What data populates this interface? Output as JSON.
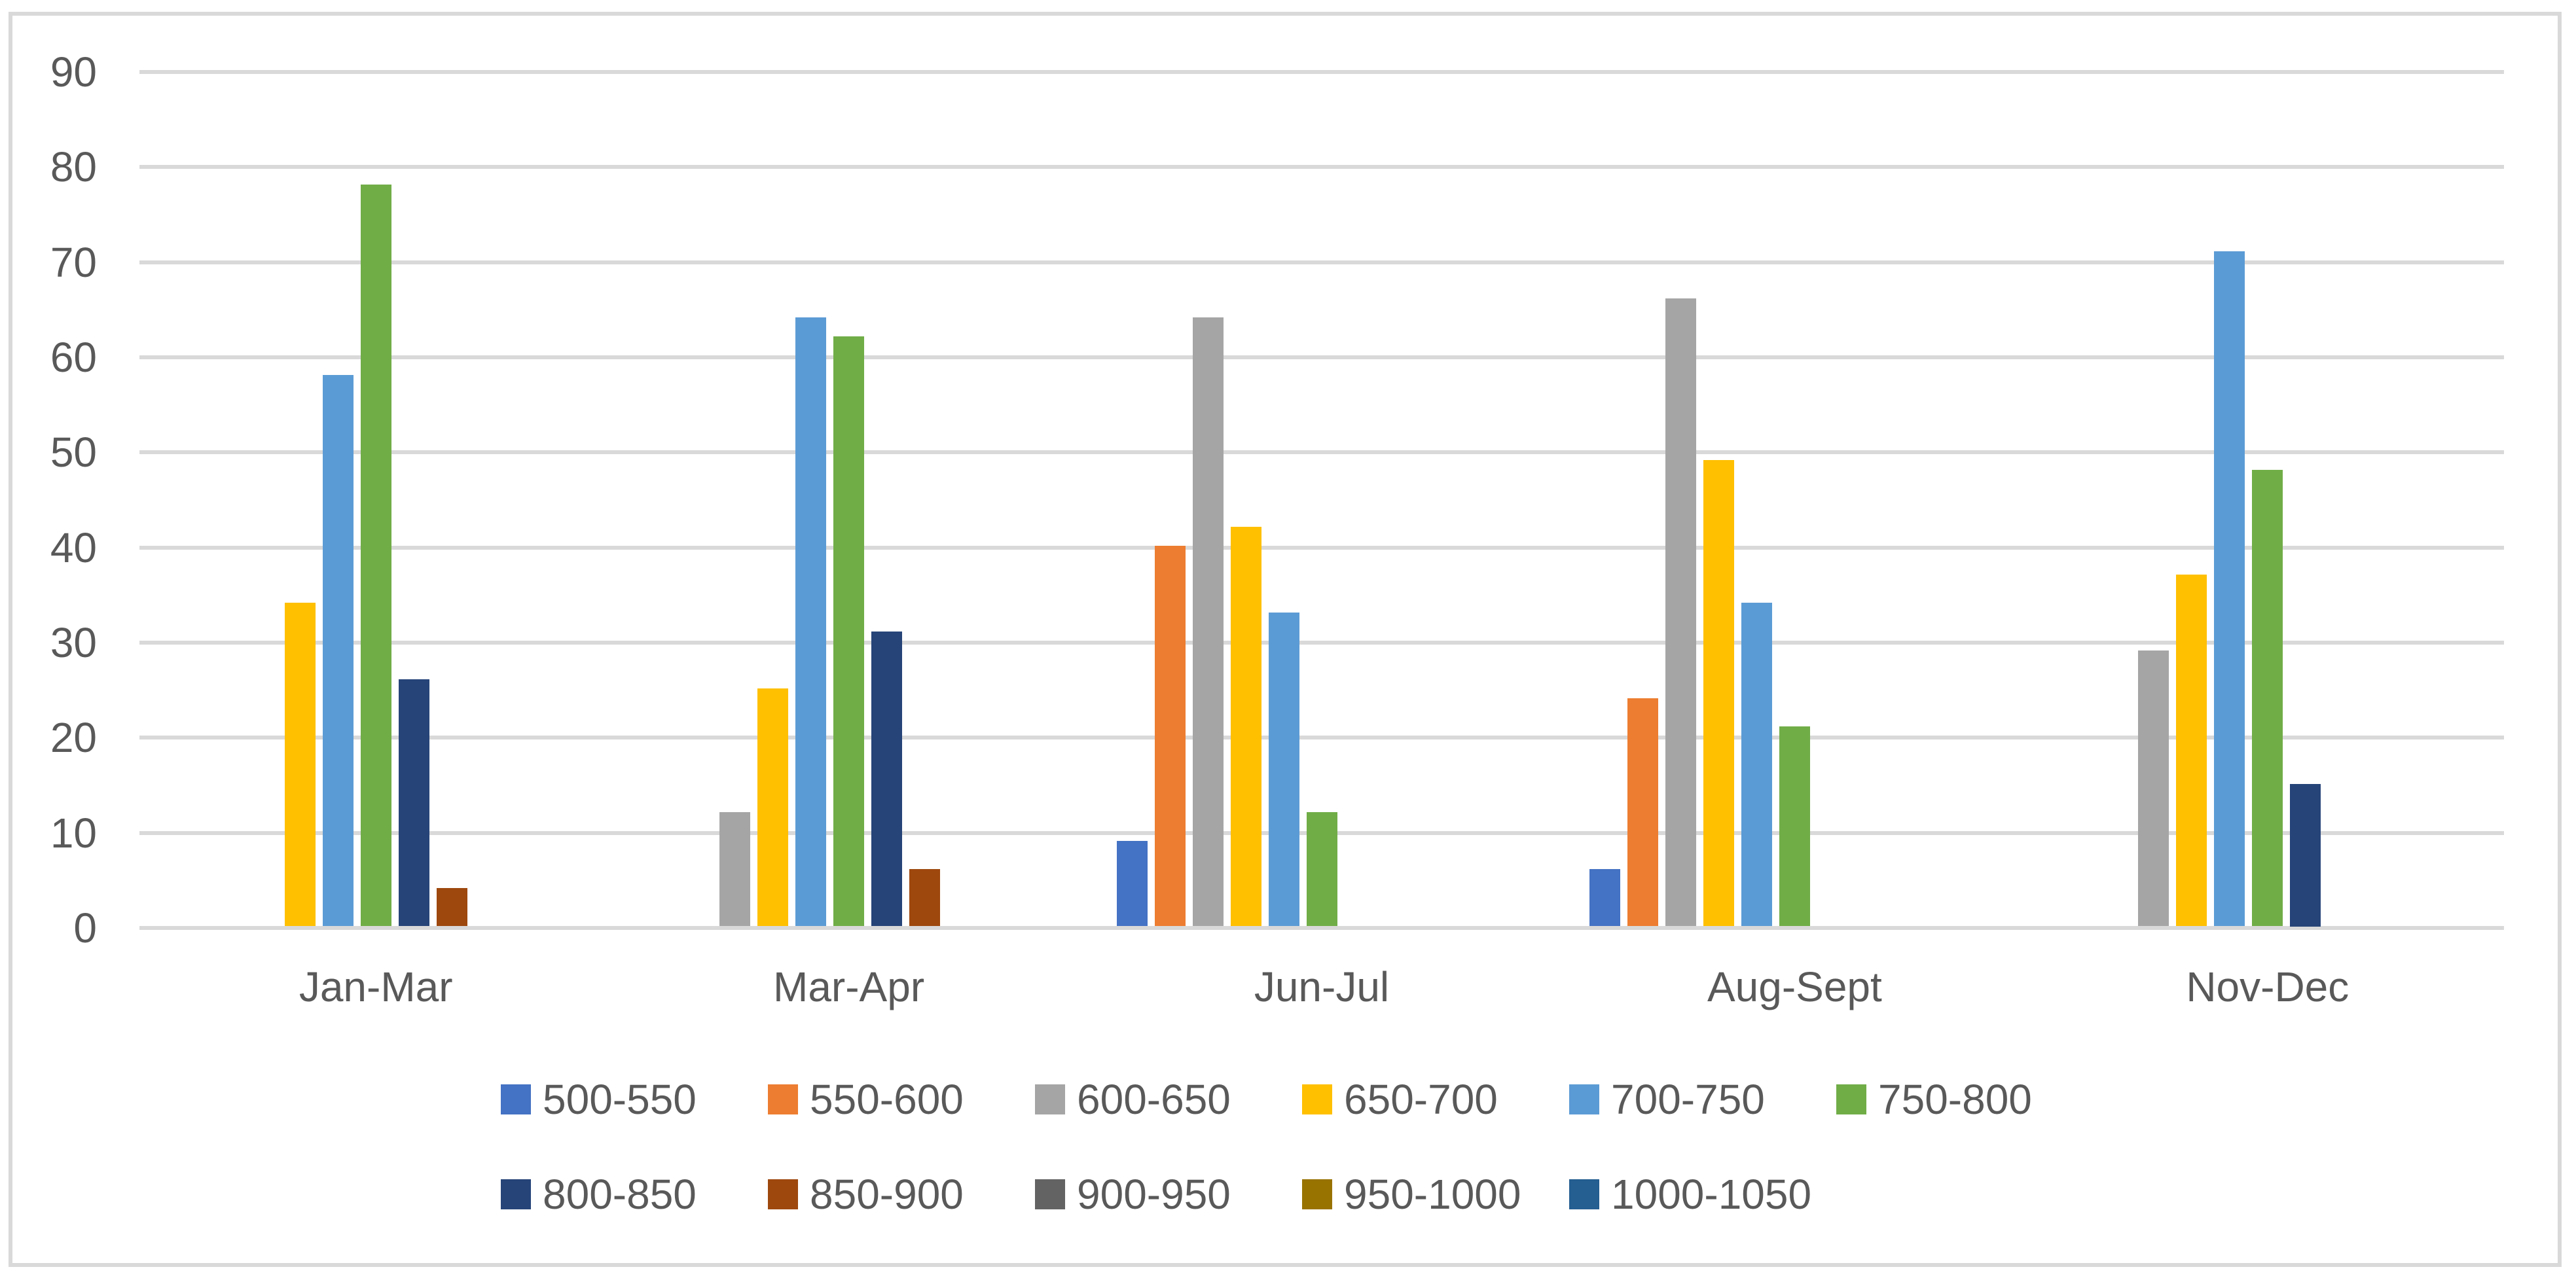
{
  "chart_data": {
    "type": "bar",
    "title": "",
    "xlabel": "",
    "ylabel": "",
    "categories": [
      "Jan-Mar",
      "Mar-Apr",
      "Jun-Jul",
      "Aug-Sept",
      "Nov-Dec"
    ],
    "series": [
      {
        "name": "500-550",
        "color": "#4472C4",
        "values": [
          0,
          0,
          9,
          6,
          0
        ]
      },
      {
        "name": "550-600",
        "color": "#ED7D31",
        "values": [
          0,
          0,
          40,
          24,
          0
        ]
      },
      {
        "name": "600-650",
        "color": "#A5A5A5",
        "values": [
          0,
          12,
          64,
          66,
          29
        ]
      },
      {
        "name": "650-700",
        "color": "#FFC000",
        "values": [
          34,
          25,
          42,
          49,
          37
        ]
      },
      {
        "name": "700-750",
        "color": "#5B9BD5",
        "values": [
          58,
          64,
          33,
          34,
          71
        ]
      },
      {
        "name": "750-800",
        "color": "#70AD47",
        "values": [
          78,
          62,
          12,
          21,
          48
        ]
      },
      {
        "name": "800-850",
        "color": "#264478",
        "values": [
          26,
          31,
          0,
          0,
          15
        ]
      },
      {
        "name": "850-900",
        "color": "#9E480E",
        "values": [
          4,
          6,
          0,
          0,
          0
        ]
      },
      {
        "name": "900-950",
        "color": "#636363",
        "values": [
          0,
          0,
          0,
          0,
          0
        ]
      },
      {
        "name": "950-1000",
        "color": "#997300",
        "values": [
          0,
          0,
          0,
          0,
          0
        ]
      },
      {
        "name": "1000-1050",
        "color": "#255E91",
        "values": [
          0,
          0,
          0,
          0,
          0
        ]
      }
    ],
    "ylim": [
      0,
      90
    ],
    "yticks": [
      0,
      10,
      20,
      30,
      40,
      50,
      60,
      70,
      80,
      90
    ],
    "grid": true,
    "legend_position": "bottom",
    "legend_items_per_row": 6,
    "legend_rows": [
      [
        "500-550",
        "550-600",
        "600-650",
        "650-700",
        "700-750",
        "750-800"
      ],
      [
        "800-850",
        "850-900",
        "900-950",
        "950-1000",
        "1000-1050"
      ]
    ]
  },
  "style": {
    "text_color": "#595959",
    "gridline_color": "#D9D9D9",
    "border_color": "#D9D9D9",
    "background_color": "#FFFFFF"
  }
}
